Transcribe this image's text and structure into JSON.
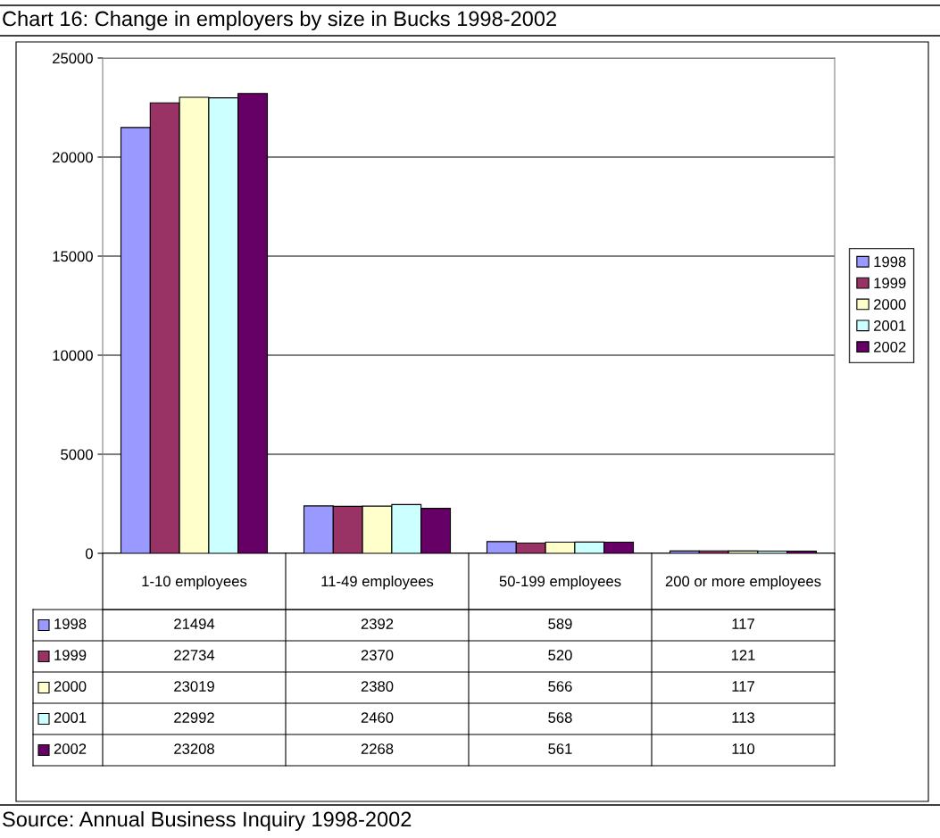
{
  "chart_data": {
    "type": "bar",
    "title": "Chart 16: Change in employers by size in Bucks 1998-2002",
    "categories": [
      "1-10 employees",
      "11-49 employees",
      "50-199 employees",
      "200 or more employees"
    ],
    "series": [
      {
        "name": "1998",
        "color": "#9999ff",
        "values": [
          21494,
          2392,
          589,
          117
        ]
      },
      {
        "name": "1999",
        "color": "#993366",
        "values": [
          22734,
          2370,
          520,
          121
        ]
      },
      {
        "name": "2000",
        "color": "#ffffcc",
        "values": [
          23019,
          2380,
          566,
          117
        ]
      },
      {
        "name": "2001",
        "color": "#ccffff",
        "values": [
          22992,
          2460,
          568,
          113
        ]
      },
      {
        "name": "2002",
        "color": "#660066",
        "values": [
          23208,
          2268,
          561,
          110
        ]
      }
    ],
    "ylim": [
      0,
      25000
    ],
    "yticks": [
      0,
      5000,
      10000,
      15000,
      20000,
      25000
    ],
    "grid": "y",
    "legend": "right",
    "data_labels": true,
    "annotations": [
      "Source: Annual Business Inquiry 1998-2002"
    ]
  }
}
